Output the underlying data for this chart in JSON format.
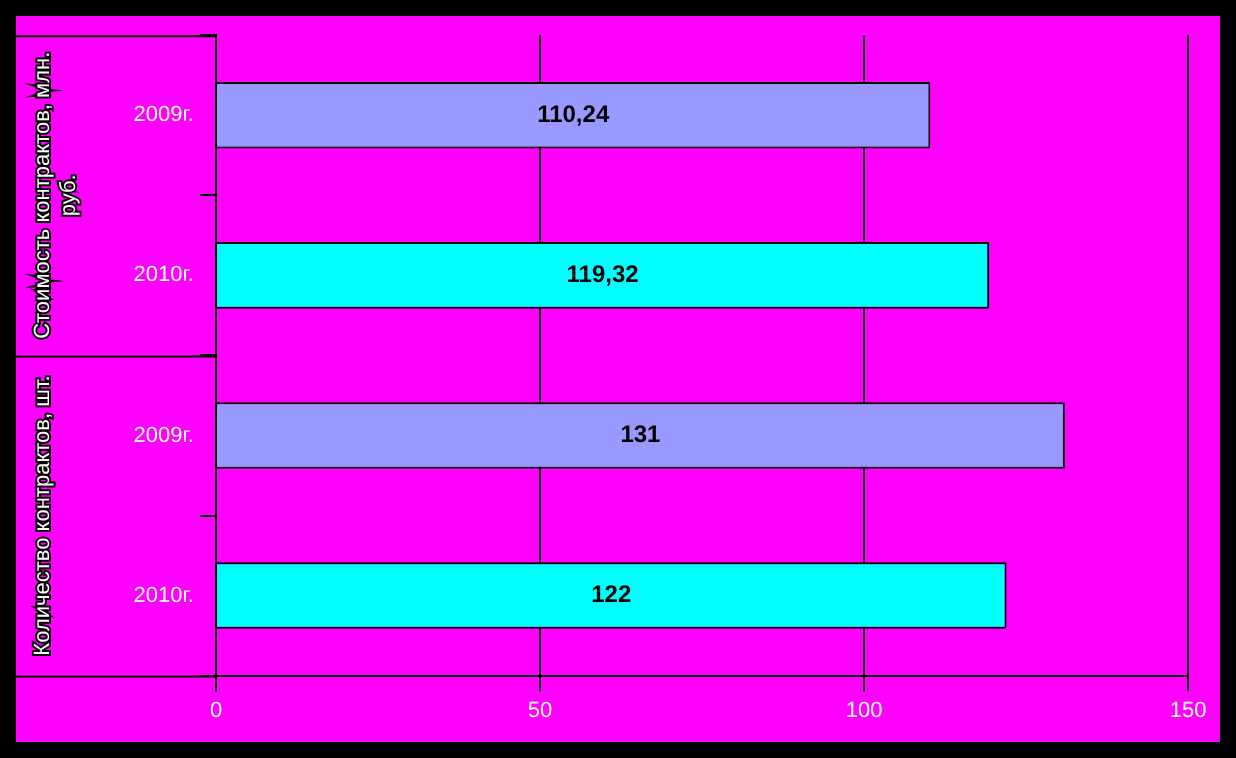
{
  "chart_data": {
    "type": "bar",
    "orientation": "horizontal",
    "categories": [
      "2009г.",
      "2010г.",
      "2009г.",
      "2010г."
    ],
    "values": [
      110.24,
      119.32,
      131,
      122
    ],
    "colors": [
      "#9999ff",
      "#00ffff",
      "#9999ff",
      "#00ffff"
    ],
    "value_labels": [
      "110,24",
      "119,32",
      "131",
      "122"
    ],
    "annotations": [
      "Стоимость контрактов, млн. руб.",
      "Количество контрактов, шт."
    ],
    "xlim": [
      0,
      150
    ],
    "xticks": [
      0,
      50,
      100,
      150
    ],
    "grid": "x",
    "legend": false
  }
}
